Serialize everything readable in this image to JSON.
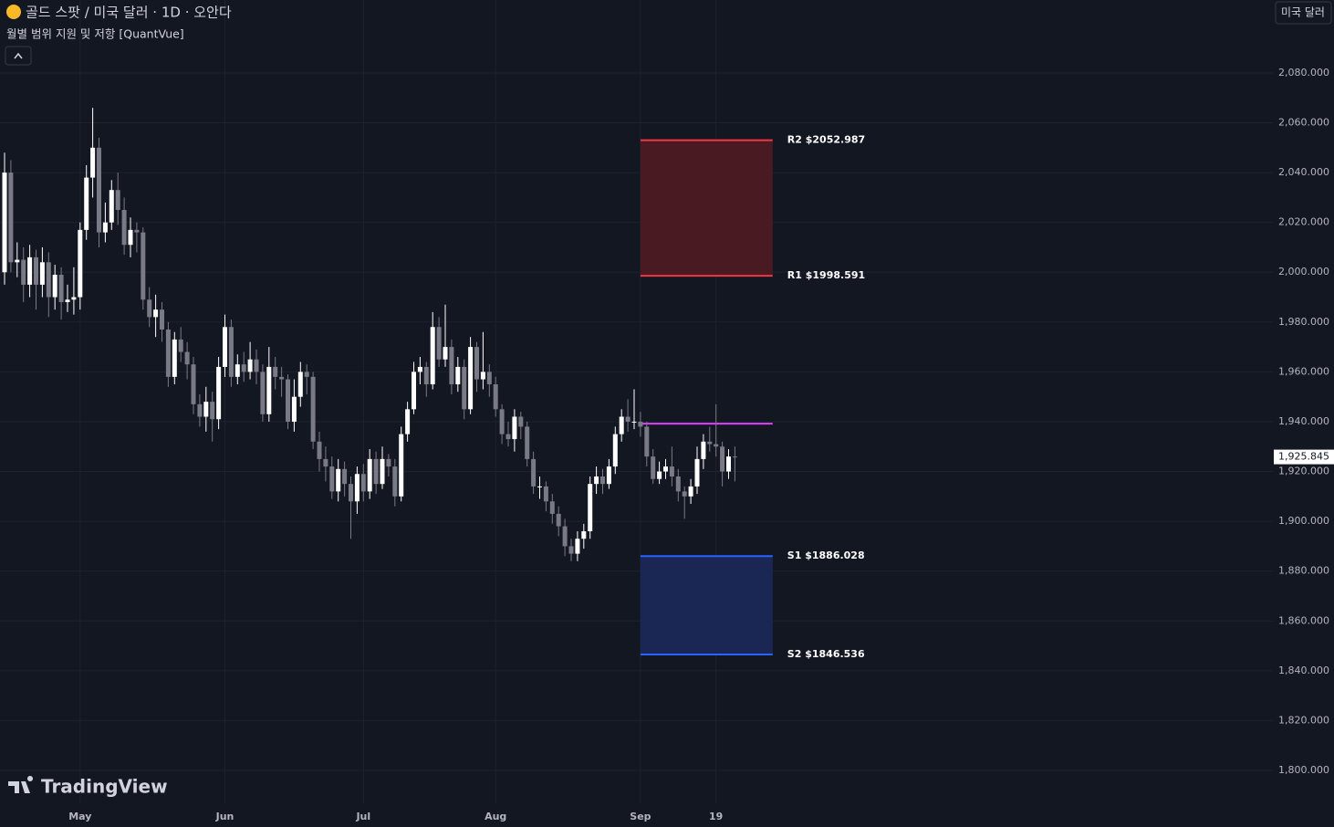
{
  "header": {
    "title": "골드 스팟 / 미국 달러 · 1D · 오안다",
    "indicator": "월별 범위 지원 및 저항 [QuantVue]",
    "currency_button": "미국 달러",
    "logo": "TradingView"
  },
  "chart_data": {
    "type": "candlestick",
    "up_color": "#ffffff",
    "down_color": "#787b86",
    "categories": [
      null,
      null,
      null,
      null,
      null,
      null,
      null,
      null,
      null,
      null,
      null,
      null,
      "May",
      null,
      null,
      null,
      null,
      null,
      null,
      null,
      null,
      null,
      null,
      null,
      null,
      null,
      null,
      null,
      null,
      null,
      null,
      null,
      null,
      null,
      null,
      "Jun",
      null,
      null,
      null,
      null,
      null,
      null,
      null,
      null,
      null,
      null,
      null,
      null,
      null,
      null,
      null,
      null,
      null,
      null,
      null,
      null,
      null,
      "Jul",
      null,
      null,
      null,
      null,
      null,
      null,
      null,
      null,
      null,
      null,
      null,
      null,
      null,
      null,
      null,
      null,
      null,
      null,
      null,
      null,
      "Aug",
      null,
      null,
      null,
      null,
      null,
      null,
      null,
      null,
      null,
      null,
      null,
      null,
      null,
      null,
      null,
      null,
      null,
      null,
      null,
      null,
      null,
      null,
      "Sep",
      null,
      null,
      null,
      null,
      null,
      null,
      null,
      null,
      null,
      null,
      null,
      "19",
      null,
      null,
      null
    ],
    "open": [
      2000,
      2040,
      2004,
      2005,
      1995,
      2006,
      1995,
      2004,
      1990,
      1999,
      1988,
      1989,
      1990,
      2017,
      2038,
      2050,
      2016,
      2020,
      2033,
      2025,
      2011,
      2017,
      2016,
      1989,
      1982,
      1985,
      1977,
      1958,
      1973,
      1968,
      1963,
      1947,
      1942,
      1948,
      1941,
      1962,
      1978,
      1958,
      1963,
      1960,
      1965,
      1960,
      1943,
      1962,
      1958,
      1957,
      1940,
      1950,
      1960,
      1958,
      1932,
      1925,
      1922,
      1912,
      1921,
      1915,
      1908,
      1919,
      1912,
      1925,
      1915,
      1925,
      1922,
      1910,
      1935,
      1945,
      1960,
      1962,
      1955,
      1978,
      1965,
      1970,
      1955,
      1962,
      1945,
      1970,
      1957,
      1960,
      1955,
      1945,
      1935,
      1933,
      1942,
      1938,
      1925,
      1914,
      1914,
      1908,
      1903,
      1898,
      1890,
      1887,
      1893,
      1896,
      1915,
      1918,
      1915,
      1922,
      1935,
      1942,
      1940,
      1940,
      1938,
      1926,
      1917,
      1920,
      1922,
      1918,
      1912,
      1910,
      1914,
      1925,
      1932,
      1931,
      1930,
      1920,
      1926
    ],
    "high": [
      2048,
      2045,
      2012,
      2010,
      2011,
      2009,
      2010,
      2008,
      2003,
      2002,
      1995,
      2002,
      2020,
      2043,
      2066,
      2054,
      2028,
      2037,
      2040,
      2030,
      2022,
      2020,
      2018,
      1994,
      1991,
      1988,
      1980,
      1976,
      1978,
      1972,
      1966,
      1951,
      1954,
      1952,
      1966,
      1983,
      1981,
      1967,
      1968,
      1972,
      1969,
      1963,
      1970,
      1966,
      1962,
      1959,
      1957,
      1964,
      1963,
      1960,
      1936,
      1930,
      1926,
      1925,
      1924,
      1918,
      1922,
      1923,
      1929,
      1928,
      1930,
      1927,
      1925,
      1938,
      1948,
      1964,
      1966,
      1964,
      1984,
      1982,
      1987,
      1973,
      1966,
      1965,
      1974,
      1972,
      1976,
      1963,
      1958,
      1947,
      1940,
      1945,
      1944,
      1940,
      1928,
      1918,
      1916,
      1911,
      1906,
      1901,
      1893,
      1896,
      1899,
      1918,
      1922,
      1921,
      1925,
      1938,
      1945,
      1949,
      1953,
      1944,
      1940,
      1929,
      1924,
      1925,
      1930,
      1921,
      1914,
      1917,
      1930,
      1935,
      1938,
      1947,
      1932,
      1929,
      1930
    ],
    "low": [
      1995,
      2000,
      1998,
      1988,
      1990,
      1985,
      1990,
      1982,
      1985,
      1981,
      1984,
      1983,
      1985,
      2013,
      2030,
      2010,
      2012,
      2017,
      2019,
      2007,
      2006,
      2008,
      1985,
      1978,
      1974,
      1972,
      1954,
      1955,
      1964,
      1957,
      1943,
      1938,
      1936,
      1932,
      1937,
      1958,
      1954,
      1955,
      1956,
      1957,
      1955,
      1940,
      1940,
      1953,
      1950,
      1937,
      1936,
      1946,
      1951,
      1929,
      1920,
      1916,
      1909,
      1908,
      1910,
      1893,
      1903,
      1908,
      1909,
      1911,
      1913,
      1918,
      1906,
      1908,
      1932,
      1943,
      1955,
      1950,
      1953,
      1962,
      1962,
      1951,
      1952,
      1941,
      1943,
      1952,
      1953,
      1950,
      1942,
      1931,
      1930,
      1928,
      1933,
      1922,
      1911,
      1909,
      1904,
      1899,
      1894,
      1886,
      1884,
      1884,
      1889,
      1893,
      1911,
      1911,
      1913,
      1919,
      1932,
      1936,
      1937,
      1934,
      1922,
      1915,
      1915,
      1917,
      1914,
      1908,
      1901,
      1907,
      1911,
      1921,
      1928,
      1926,
      1914,
      1917,
      1916
    ],
    "close": [
      2040,
      2004,
      2005,
      1995,
      2006,
      1995,
      2004,
      1990,
      1999,
      1988,
      1989,
      1990,
      2017,
      2038,
      2050,
      2016,
      2020,
      2033,
      2025,
      2011,
      2017,
      2016,
      1989,
      1982,
      1985,
      1977,
      1958,
      1973,
      1968,
      1963,
      1947,
      1942,
      1948,
      1941,
      1962,
      1978,
      1958,
      1963,
      1960,
      1965,
      1960,
      1943,
      1962,
      1958,
      1957,
      1940,
      1950,
      1960,
      1958,
      1932,
      1925,
      1922,
      1912,
      1921,
      1915,
      1908,
      1919,
      1912,
      1925,
      1915,
      1925,
      1922,
      1910,
      1935,
      1945,
      1960,
      1962,
      1955,
      1978,
      1965,
      1970,
      1955,
      1962,
      1945,
      1970,
      1957,
      1960,
      1955,
      1945,
      1935,
      1933,
      1942,
      1938,
      1925,
      1914,
      1914,
      1908,
      1903,
      1898,
      1890,
      1887,
      1893,
      1896,
      1915,
      1918,
      1915,
      1922,
      1935,
      1942,
      1940,
      1940,
      1938,
      1926,
      1917,
      1920,
      1922,
      1918,
      1912,
      1910,
      1914,
      1925,
      1932,
      1931,
      1930,
      1920,
      1926,
      1925.845
    ],
    "last_price": {
      "value": 1925.845,
      "label": "1,925.845"
    },
    "levels": [
      {
        "label": "R2 $2052.987",
        "value": 2052.987,
        "color": "#f23645"
      },
      {
        "label": "R1 $1998.591",
        "value": 1998.591,
        "color": "#f23645"
      },
      {
        "label": "S1 $1886.028",
        "value": 1886.028,
        "color": "#2962ff"
      },
      {
        "label": "S2 $1846.536",
        "value": 1846.536,
        "color": "#2962ff"
      }
    ],
    "resistance_zone_color": "#4a1a22",
    "support_zone_color": "#1a2754",
    "pivot": {
      "value": 1939.2,
      "color": "#e040fb"
    },
    "ylim": [
      1786.8,
      2109.3
    ],
    "yticks": [
      {
        "value": 1800,
        "label": "1,800.000"
      },
      {
        "value": 1820,
        "label": "1,820.000"
      },
      {
        "value": 1840,
        "label": "1,840.000"
      },
      {
        "value": 1860,
        "label": "1,860.000"
      },
      {
        "value": 1880,
        "label": "1,880.000"
      },
      {
        "value": 1900,
        "label": "1,900.000"
      },
      {
        "value": 1920,
        "label": "1,920.000"
      },
      {
        "value": 1940,
        "label": "1,940.000"
      },
      {
        "value": 1960,
        "label": "1,960.000"
      },
      {
        "value": 1980,
        "label": "1,980.000"
      },
      {
        "value": 2000,
        "label": "2,000.000"
      },
      {
        "value": 2020,
        "label": "2,020.000"
      },
      {
        "value": 2040,
        "label": "2,040.000"
      },
      {
        "value": 2060,
        "label": "2,060.000"
      },
      {
        "value": 2080,
        "label": "2,080.000"
      }
    ],
    "grid": true
  }
}
